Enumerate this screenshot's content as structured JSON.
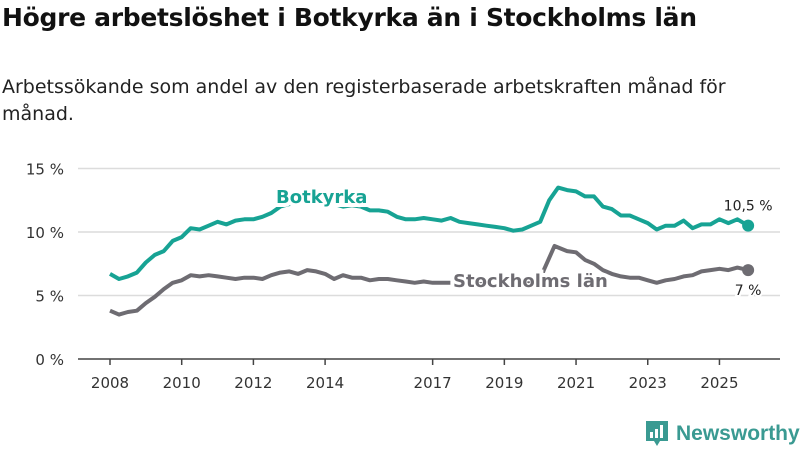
{
  "header": {
    "title": "Högre arbetslöshet i Botkyrka än i Stockholms län",
    "subtitle": "Arbetssökande som andel av den registerbaserade arbetskraften månad för månad."
  },
  "brand": {
    "name": "Newsworthy"
  },
  "chart_data": {
    "type": "line",
    "title": "Högre arbetslöshet i Botkyrka än i Stockholms län",
    "ylabel": "",
    "xlabel": "",
    "ylim": [
      0,
      15
    ],
    "xlim": [
      2007.6,
      2026.6
    ],
    "yticks": [
      {
        "v": 0,
        "label": "0 %"
      },
      {
        "v": 5,
        "label": "5 %"
      },
      {
        "v": 10,
        "label": "10 %"
      },
      {
        "v": 15,
        "label": "15 %"
      }
    ],
    "xticks": [
      {
        "v": 2008,
        "label": "2008"
      },
      {
        "v": 2010,
        "label": "2010"
      },
      {
        "v": 2012,
        "label": "2012"
      },
      {
        "v": 2014,
        "label": "2014"
      },
      {
        "v": 2017,
        "label": "2017"
      },
      {
        "v": 2019,
        "label": "2019"
      },
      {
        "v": 2021,
        "label": "2021"
      },
      {
        "v": 2023,
        "label": "2023"
      },
      {
        "v": 2025,
        "label": "2025"
      }
    ],
    "grid": true,
    "series": [
      {
        "name": "Botkyrka",
        "color": "#17a394",
        "end_label": "10,5 %",
        "x": [
          2008,
          2008.25,
          2008.5,
          2008.75,
          2009,
          2009.25,
          2009.5,
          2009.75,
          2010,
          2010.25,
          2010.5,
          2010.75,
          2011,
          2011.25,
          2011.5,
          2011.75,
          2012,
          2012.25,
          2012.5,
          2012.75,
          2013,
          2013.25,
          2013.5,
          2013.75,
          2014,
          2014.25,
          2014.5,
          2014.75,
          2015,
          2015.25,
          2015.5,
          2015.75,
          2016,
          2016.25,
          2016.5,
          2016.75,
          2017,
          2017.25,
          2017.5,
          2017.75,
          2018,
          2018.25,
          2018.5,
          2018.75,
          2019,
          2019.25,
          2019.5,
          2019.75,
          2020,
          2020.25,
          2020.5,
          2020.75,
          2021,
          2021.25,
          2021.5,
          2021.75,
          2022,
          2022.25,
          2022.5,
          2022.75,
          2023,
          2023.25,
          2023.5,
          2023.75,
          2024,
          2024.25,
          2024.5,
          2024.75,
          2025,
          2025.25,
          2025.5,
          2025.8
        ],
        "values": [
          6.7,
          6.3,
          6.5,
          6.8,
          7.6,
          8.2,
          8.5,
          9.3,
          9.6,
          10.3,
          10.2,
          10.5,
          10.8,
          10.6,
          10.9,
          11.0,
          11.0,
          11.2,
          11.5,
          12.0,
          12.2,
          12.3,
          12.3,
          12.2,
          12.1,
          12.2,
          12.0,
          12.1,
          12.0,
          11.7,
          11.7,
          11.6,
          11.2,
          11.0,
          11.0,
          11.1,
          11.0,
          10.9,
          11.1,
          10.8,
          10.7,
          10.6,
          10.5,
          10.4,
          10.3,
          10.1,
          10.2,
          10.5,
          10.8,
          12.5,
          13.5,
          13.3,
          13.2,
          12.8,
          12.8,
          12.0,
          11.8,
          11.3,
          11.3,
          11.0,
          10.7,
          10.2,
          10.5,
          10.5,
          10.9,
          10.3,
          10.6,
          10.6,
          11.0,
          10.7,
          11.0,
          10.5
        ]
      },
      {
        "name": "Stockholms län",
        "color": "#6e6c72",
        "end_label": "7 %",
        "x": [
          2008,
          2008.25,
          2008.5,
          2008.75,
          2009,
          2009.25,
          2009.5,
          2009.75,
          2010,
          2010.25,
          2010.5,
          2010.75,
          2011,
          2011.25,
          2011.5,
          2011.75,
          2012,
          2012.25,
          2012.5,
          2012.75,
          2013,
          2013.25,
          2013.5,
          2013.75,
          2014,
          2014.25,
          2014.5,
          2014.75,
          2015,
          2015.25,
          2015.5,
          2015.75,
          2016,
          2016.25,
          2016.5,
          2016.75,
          2017,
          2017.25,
          2017.5,
          2017.75,
          2018,
          2018.25,
          2018.5,
          2018.75,
          2019,
          2019.25,
          2019.5,
          2019.75,
          2020,
          2020.1,
          2020.4,
          2020.75,
          2021,
          2021.25,
          2021.5,
          2021.75,
          2022,
          2022.25,
          2022.5,
          2022.75,
          2023,
          2023.25,
          2023.5,
          2023.75,
          2024,
          2024.25,
          2024.5,
          2024.75,
          2025,
          2025.25,
          2025.5,
          2025.8
        ],
        "values": [
          3.8,
          3.5,
          3.7,
          3.8,
          4.4,
          4.9,
          5.5,
          6.0,
          6.2,
          6.6,
          6.5,
          6.6,
          6.5,
          6.4,
          6.3,
          6.4,
          6.4,
          6.3,
          6.6,
          6.8,
          6.9,
          6.7,
          7.0,
          6.9,
          6.7,
          6.3,
          6.6,
          6.4,
          6.4,
          6.2,
          6.3,
          6.3,
          6.2,
          6.1,
          6.0,
          6.1,
          6.0,
          6.0,
          6.0,
          6.0,
          6.0,
          5.9,
          5.9,
          5.9,
          5.9,
          5.8,
          5.9,
          6.0,
          6.2,
          7.0,
          8.9,
          8.5,
          8.4,
          7.8,
          7.5,
          7.0,
          6.7,
          6.5,
          6.4,
          6.4,
          6.2,
          6.0,
          6.2,
          6.3,
          6.5,
          6.6,
          6.9,
          7.0,
          7.1,
          7.0,
          7.2,
          7.0
        ]
      }
    ],
    "annotations": [
      {
        "text": "Botkyrka",
        "series": "Botkyrka"
      },
      {
        "text": "Stockholms län",
        "series": "Stockholms län"
      }
    ]
  }
}
